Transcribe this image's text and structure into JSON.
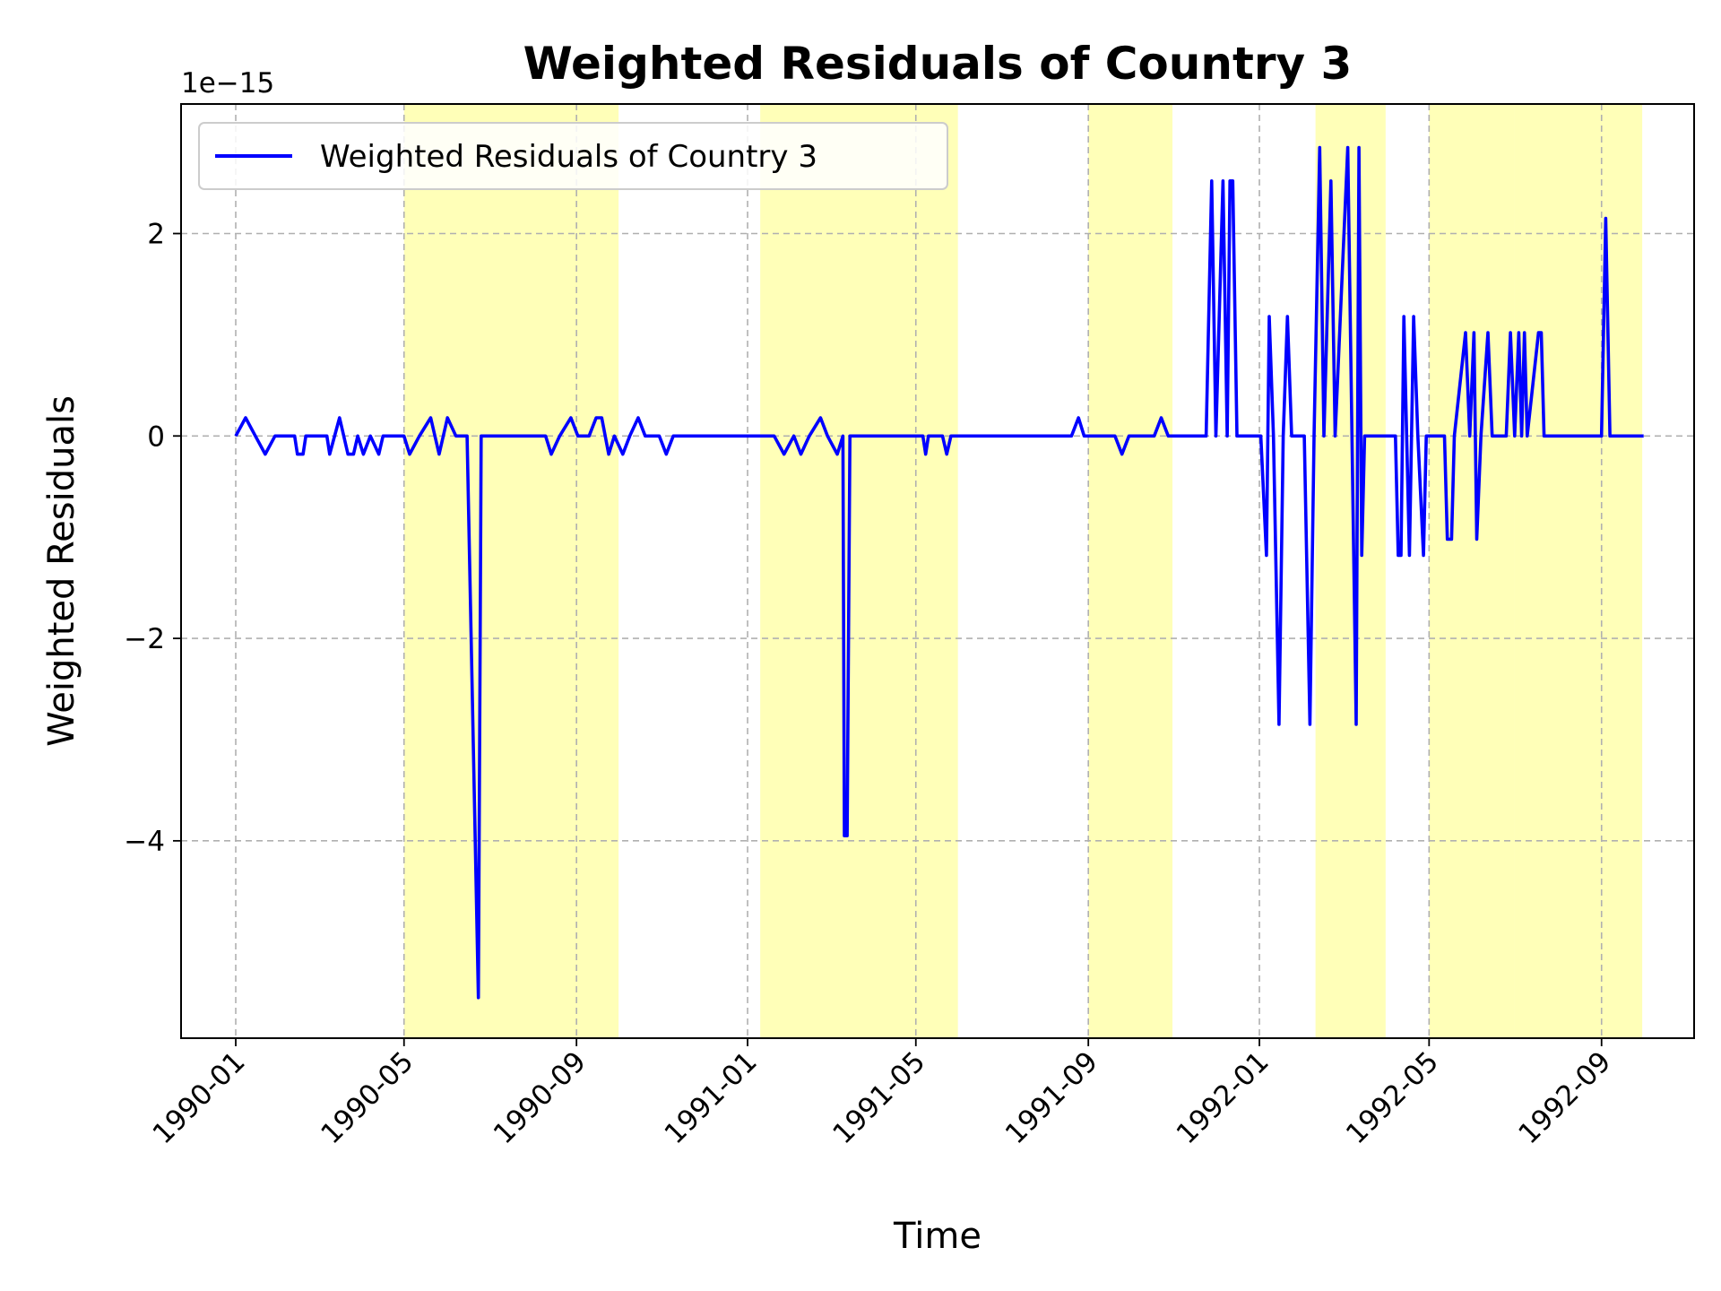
{
  "chart_data": {
    "type": "line",
    "title": "Weighted Residuals of Country 3",
    "xlabel": "Time",
    "ylabel": "Weighted Residuals",
    "y_scale_factor_label": "1e−15",
    "x_tick_labels": [
      "1990-01",
      "1990-05",
      "1990-09",
      "1991-01",
      "1991-05",
      "1991-09",
      "1992-01",
      "1992-05",
      "1992-09"
    ],
    "x_ticks": [
      "1990-01-01",
      "1990-05-01",
      "1990-09-01",
      "1991-01-01",
      "1991-05-01",
      "1991-09-01",
      "1992-01-01",
      "1992-05-01",
      "1992-09-01"
    ],
    "y_ticks": [
      2,
      0,
      -2,
      -4
    ],
    "y_tick_labels": [
      "2",
      "0",
      "−2",
      "−4"
    ],
    "xlim": [
      "1989-11-23",
      "1992-11-06"
    ],
    "ylim": [
      -5.95,
      3.28
    ],
    "grid": true,
    "legend_position": "top-left",
    "line_color": "#0000ff",
    "shade_color": "#ffff00",
    "series": [
      {
        "name": "Weighted Residuals of Country 3",
        "points": [
          [
            "1990-01-01",
            0
          ],
          [
            "1990-01-08",
            0.18
          ],
          [
            "1990-01-15",
            0
          ],
          [
            "1990-01-22",
            -0.18
          ],
          [
            "1990-01-29",
            0
          ],
          [
            "1990-02-12",
            0
          ],
          [
            "1990-02-14",
            -0.18
          ],
          [
            "1990-02-18",
            -0.18
          ],
          [
            "1990-02-20",
            0
          ],
          [
            "1990-03-07",
            0
          ],
          [
            "1990-03-09",
            -0.18
          ],
          [
            "1990-03-16",
            0.18
          ],
          [
            "1990-03-22",
            -0.18
          ],
          [
            "1990-03-26",
            -0.18
          ],
          [
            "1990-03-29",
            0
          ],
          [
            "1990-04-02",
            -0.18
          ],
          [
            "1990-04-07",
            0
          ],
          [
            "1990-04-13",
            -0.18
          ],
          [
            "1990-04-16",
            0
          ],
          [
            "1990-05-01",
            0
          ],
          [
            "1990-05-05",
            -0.18
          ],
          [
            "1990-05-12",
            0
          ],
          [
            "1990-05-20",
            0.18
          ],
          [
            "1990-05-26",
            -0.18
          ],
          [
            "1990-06-01",
            0.18
          ],
          [
            "1990-06-07",
            0
          ],
          [
            "1990-06-15",
            0
          ],
          [
            "1990-06-23",
            -5.55
          ],
          [
            "1990-06-25",
            0
          ],
          [
            "1990-08-10",
            0
          ],
          [
            "1990-08-14",
            -0.18
          ],
          [
            "1990-08-20",
            0
          ],
          [
            "1990-08-28",
            0.18
          ],
          [
            "1990-09-02",
            0
          ],
          [
            "1990-09-10",
            0
          ],
          [
            "1990-09-15",
            0.18
          ],
          [
            "1990-09-19",
            0.18
          ],
          [
            "1990-09-24",
            -0.18
          ],
          [
            "1990-09-28",
            0
          ],
          [
            "1990-10-04",
            -0.18
          ],
          [
            "1990-10-09",
            0
          ],
          [
            "1990-10-15",
            0.18
          ],
          [
            "1990-10-20",
            0
          ],
          [
            "1990-10-30",
            0
          ],
          [
            "1990-11-04",
            -0.18
          ],
          [
            "1990-11-09",
            0
          ],
          [
            "1991-01-20",
            0
          ],
          [
            "1991-01-27",
            -0.18
          ],
          [
            "1991-02-03",
            0
          ],
          [
            "1991-02-08",
            -0.18
          ],
          [
            "1991-02-14",
            0
          ],
          [
            "1991-02-22",
            0.18
          ],
          [
            "1991-02-27",
            0
          ],
          [
            "1991-03-06",
            -0.18
          ],
          [
            "1991-03-10",
            0
          ],
          [
            "1991-03-11",
            -3.95
          ],
          [
            "1991-03-13",
            -3.95
          ],
          [
            "1991-03-15",
            0
          ],
          [
            "1991-05-06",
            0
          ],
          [
            "1991-05-08",
            -0.18
          ],
          [
            "1991-05-10",
            0
          ],
          [
            "1991-05-20",
            0
          ],
          [
            "1991-05-23",
            -0.18
          ],
          [
            "1991-05-26",
            0
          ],
          [
            "1991-08-20",
            0
          ],
          [
            "1991-08-25",
            0.18
          ],
          [
            "1991-08-29",
            0
          ],
          [
            "1991-09-20",
            0
          ],
          [
            "1991-09-25",
            -0.18
          ],
          [
            "1991-09-30",
            0
          ],
          [
            "1991-10-18",
            0
          ],
          [
            "1991-10-23",
            0.18
          ],
          [
            "1991-10-28",
            0
          ],
          [
            "1991-11-24",
            0
          ],
          [
            "1991-11-28",
            2.52
          ],
          [
            "1991-12-01",
            0
          ],
          [
            "1991-12-06",
            2.52
          ],
          [
            "1991-12-09",
            0
          ],
          [
            "1991-12-11",
            2.52
          ],
          [
            "1991-12-13",
            2.52
          ],
          [
            "1991-12-16",
            0
          ],
          [
            "1992-01-02",
            0
          ],
          [
            "1992-01-06",
            -1.18
          ],
          [
            "1992-01-08",
            1.18
          ],
          [
            "1992-01-11",
            0
          ],
          [
            "1992-01-15",
            -2.85
          ],
          [
            "1992-01-18",
            0
          ],
          [
            "1992-01-21",
            1.18
          ],
          [
            "1992-01-24",
            0
          ],
          [
            "1992-02-02",
            0
          ],
          [
            "1992-02-06",
            -2.85
          ],
          [
            "1992-02-09",
            0
          ],
          [
            "1992-02-13",
            2.85
          ],
          [
            "1992-02-16",
            0
          ],
          [
            "1992-02-21",
            2.52
          ],
          [
            "1992-02-24",
            0
          ],
          [
            "1992-03-04",
            2.85
          ],
          [
            "1992-03-07",
            0
          ],
          [
            "1992-03-10",
            -2.85
          ],
          [
            "1992-03-12",
            2.85
          ],
          [
            "1992-03-14",
            -1.18
          ],
          [
            "1992-03-16",
            0
          ],
          [
            "1992-04-07",
            0
          ],
          [
            "1992-04-09",
            -1.18
          ],
          [
            "1992-04-11",
            -1.18
          ],
          [
            "1992-04-13",
            1.18
          ],
          [
            "1992-04-15",
            0
          ],
          [
            "1992-04-17",
            -1.18
          ],
          [
            "1992-04-20",
            1.18
          ],
          [
            "1992-04-23",
            0
          ],
          [
            "1992-04-27",
            -1.18
          ],
          [
            "1992-04-29",
            0
          ],
          [
            "1992-05-12",
            0
          ],
          [
            "1992-05-14",
            -1.02
          ],
          [
            "1992-05-17",
            -1.02
          ],
          [
            "1992-05-19",
            0
          ],
          [
            "1992-05-27",
            1.02
          ],
          [
            "1992-05-30",
            0
          ],
          [
            "1992-06-02",
            1.02
          ],
          [
            "1992-06-04",
            -1.02
          ],
          [
            "1992-06-07",
            0
          ],
          [
            "1992-06-12",
            1.02
          ],
          [
            "1992-06-15",
            0
          ],
          [
            "1992-06-25",
            0
          ],
          [
            "1992-06-28",
            1.02
          ],
          [
            "1992-07-01",
            0
          ],
          [
            "1992-07-04",
            1.02
          ],
          [
            "1992-07-06",
            0
          ],
          [
            "1992-07-08",
            1.02
          ],
          [
            "1992-07-10",
            0
          ],
          [
            "1992-07-18",
            1.02
          ],
          [
            "1992-07-20",
            1.02
          ],
          [
            "1992-07-22",
            0
          ],
          [
            "1992-09-01",
            0
          ],
          [
            "1992-09-04",
            2.15
          ],
          [
            "1992-09-07",
            0
          ],
          [
            "1992-10-01",
            0
          ]
        ]
      }
    ],
    "shaded_regions": [
      [
        "1990-05-01",
        "1990-10-01"
      ],
      [
        "1991-01-10",
        "1991-05-31"
      ],
      [
        "1991-09-01",
        "1991-10-31"
      ],
      [
        "1992-02-10",
        "1992-03-31"
      ],
      [
        "1992-05-01",
        "1992-07-01"
      ],
      [
        "1992-07-01",
        "1992-09-30"
      ]
    ]
  }
}
